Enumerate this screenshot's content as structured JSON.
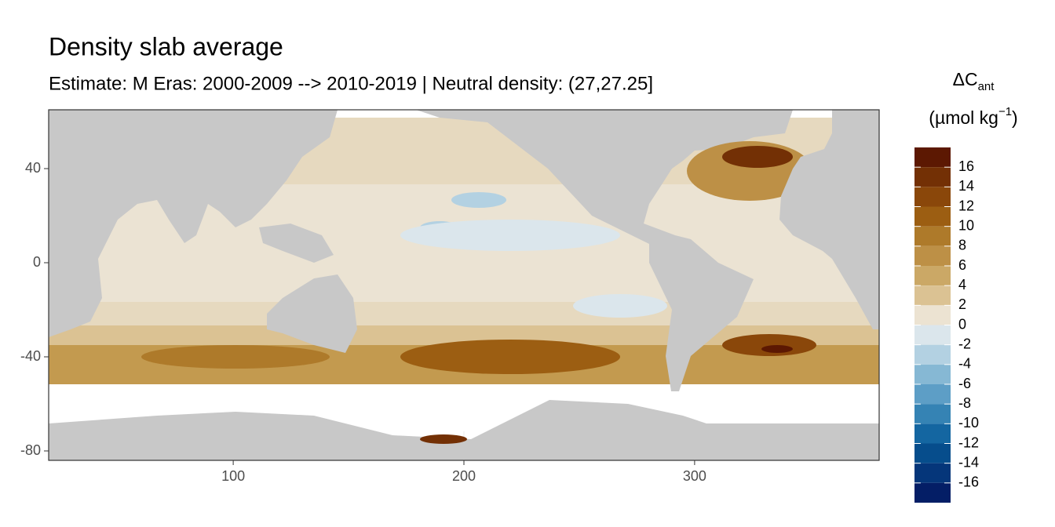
{
  "chart_data": {
    "type": "map",
    "title": "Density slab average",
    "subtitle": "Estimate: M Eras: 2000-2009 --> 2010-2019 | Neutral density: (27,27.25]",
    "xlim": [
      20,
      380
    ],
    "ylim": [
      -84,
      65
    ],
    "xticks": [
      100,
      200,
      300
    ],
    "yticks": [
      40,
      0,
      -40,
      -80
    ],
    "grid": true,
    "legend": {
      "title": {
        "symbol": "ΔC",
        "subscript": "ant"
      },
      "unit": {
        "text": "(µmol kg",
        "superscript": "−1",
        "close": ")"
      },
      "levels": [
        18,
        16,
        14,
        12,
        10,
        8,
        6,
        4,
        2,
        0,
        -2,
        -4,
        -6,
        -8,
        -10,
        -12,
        -14,
        -16,
        -18
      ],
      "colors": [
        "#5c1802",
        "#733005",
        "#8a470a",
        "#9c5e12",
        "#ae7a2a",
        "#bd9046",
        "#cba866",
        "#dbc293",
        "#ece3d2",
        "#dbe6ec",
        "#b3d1e2",
        "#86b8d4",
        "#5d9ec6",
        "#3583b4",
        "#1466a1",
        "#064d8c",
        "#05367a",
        "#041e66"
      ],
      "ticks": [
        16,
        14,
        12,
        10,
        8,
        6,
        4,
        2,
        0,
        -2,
        -4,
        -6,
        -8,
        -10,
        -12,
        -14,
        -16
      ]
    }
  }
}
